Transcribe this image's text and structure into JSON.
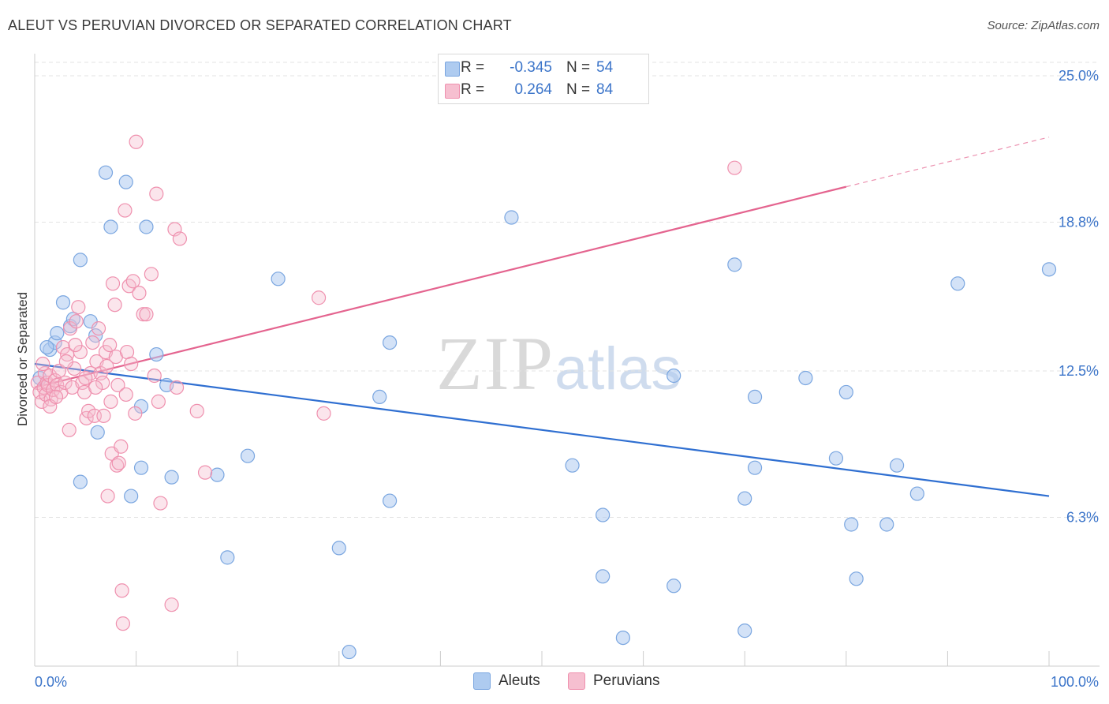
{
  "header": {
    "title": "ALEUT VS PERUVIAN DIVORCED OR SEPARATED CORRELATION CHART",
    "source": "Source: ZipAtlas.com"
  },
  "watermark": {
    "zip": "ZIP",
    "atlas": "atlas"
  },
  "legend": {
    "r_label": "R =",
    "n_label": "N =",
    "aleuts": {
      "r": "-0.345",
      "n": "54"
    },
    "peruvians": {
      "r": "0.264",
      "n": "84"
    }
  },
  "bottom_legend": {
    "aleuts": "Aleuts",
    "peruvians": "Peruvians"
  },
  "colors": {
    "aleut_fill": "#aecbf0",
    "aleut_stroke": "#7aa6e0",
    "aleut_line": "#2f6fd1",
    "peru_fill": "#f6bfd0",
    "peru_stroke": "#ef90ae",
    "peru_line": "#e4648f",
    "tick_label": "#3b74c9",
    "grid": "#e3e3e3"
  },
  "chart_data": {
    "type": "scatter",
    "title": "ALEUT VS PERUVIAN DIVORCED OR SEPARATED CORRELATION CHART",
    "xlabel": "",
    "ylabel": "Divorced or Separated",
    "xlim": [
      0,
      100
    ],
    "ylim": [
      0,
      25
    ],
    "x_tick_labels": [
      "0.0%",
      "100.0%"
    ],
    "y_ticks": [
      6.3,
      12.5,
      18.8,
      25.0
    ],
    "y_tick_labels": [
      "6.3%",
      "12.5%",
      "18.8%",
      "25.0%"
    ],
    "grid": true,
    "series": [
      {
        "name": "Aleuts",
        "r": -0.345,
        "n": 54,
        "trend": {
          "x": [
            0,
            100
          ],
          "y": [
            12.8,
            7.2
          ]
        },
        "points": [
          [
            0.5,
            12.2
          ],
          [
            1.5,
            13.4
          ],
          [
            2.0,
            13.7
          ],
          [
            2.2,
            14.1
          ],
          [
            2.8,
            15.4
          ],
          [
            3.5,
            14.4
          ],
          [
            3.8,
            14.7
          ],
          [
            1.2,
            13.5
          ],
          [
            4.5,
            17.2
          ],
          [
            5.5,
            14.6
          ],
          [
            6.0,
            14.0
          ],
          [
            7.0,
            20.9
          ],
          [
            9.0,
            20.5
          ],
          [
            7.5,
            18.6
          ],
          [
            11.0,
            18.6
          ],
          [
            12.0,
            13.2
          ],
          [
            13.0,
            11.9
          ],
          [
            10.5,
            11.0
          ],
          [
            6.2,
            9.9
          ],
          [
            4.5,
            7.8
          ],
          [
            10.5,
            8.4
          ],
          [
            9.5,
            7.2
          ],
          [
            13.5,
            8.0
          ],
          [
            18.0,
            8.1
          ],
          [
            21.0,
            8.9
          ],
          [
            19.0,
            4.6
          ],
          [
            24.0,
            16.4
          ],
          [
            35.0,
            13.7
          ],
          [
            34.0,
            11.4
          ],
          [
            35.0,
            7.0
          ],
          [
            30.0,
            5.0
          ],
          [
            31.0,
            0.6
          ],
          [
            47.0,
            19.0
          ],
          [
            53.0,
            8.5
          ],
          [
            56.0,
            6.4
          ],
          [
            56.0,
            3.8
          ],
          [
            58.0,
            1.2
          ],
          [
            63.0,
            12.3
          ],
          [
            63.0,
            3.4
          ],
          [
            69.0,
            17.0
          ],
          [
            71.0,
            11.4
          ],
          [
            71.0,
            8.4
          ],
          [
            70.0,
            7.1
          ],
          [
            70.0,
            1.5
          ],
          [
            76.0,
            12.2
          ],
          [
            80.0,
            11.6
          ],
          [
            79.0,
            8.8
          ],
          [
            80.5,
            6.0
          ],
          [
            81.0,
            3.7
          ],
          [
            84.0,
            6.0
          ],
          [
            85.0,
            8.5
          ],
          [
            87.0,
            7.3
          ],
          [
            91.0,
            16.2
          ],
          [
            100.0,
            16.8
          ]
        ]
      },
      {
        "name": "Peruvians",
        "r": 0.264,
        "n": 84,
        "trend": {
          "x": [
            0,
            80
          ],
          "y": [
            11.8,
            20.3
          ],
          "dashed_extension": {
            "x": [
              80,
              100
            ],
            "y": [
              20.3,
              22.4
            ]
          }
        },
        "points": [
          [
            0.3,
            12.0
          ],
          [
            0.5,
            11.6
          ],
          [
            0.7,
            11.2
          ],
          [
            0.9,
            11.8
          ],
          [
            1.0,
            12.4
          ],
          [
            1.1,
            11.5
          ],
          [
            1.2,
            12.0
          ],
          [
            1.3,
            11.9
          ],
          [
            1.5,
            12.3
          ],
          [
            1.6,
            11.3
          ],
          [
            1.8,
            11.7
          ],
          [
            2.0,
            12.1
          ],
          [
            2.2,
            11.9
          ],
          [
            2.4,
            12.5
          ],
          [
            2.6,
            11.6
          ],
          [
            2.8,
            13.5
          ],
          [
            3.0,
            12.0
          ],
          [
            3.2,
            13.2
          ],
          [
            3.4,
            10.0
          ],
          [
            3.5,
            14.3
          ],
          [
            3.7,
            11.8
          ],
          [
            3.9,
            12.6
          ],
          [
            4.1,
            14.6
          ],
          [
            4.3,
            15.2
          ],
          [
            4.5,
            13.3
          ],
          [
            4.7,
            12.0
          ],
          [
            4.9,
            11.6
          ],
          [
            5.1,
            10.5
          ],
          [
            5.3,
            10.8
          ],
          [
            5.5,
            12.4
          ],
          [
            5.7,
            13.7
          ],
          [
            5.9,
            10.6
          ],
          [
            6.1,
            12.9
          ],
          [
            6.3,
            14.3
          ],
          [
            6.5,
            12.4
          ],
          [
            6.7,
            12.0
          ],
          [
            6.8,
            10.6
          ],
          [
            7.0,
            13.3
          ],
          [
            7.2,
            7.2
          ],
          [
            7.4,
            13.6
          ],
          [
            7.5,
            11.2
          ],
          [
            7.6,
            9.0
          ],
          [
            7.7,
            16.2
          ],
          [
            7.9,
            15.3
          ],
          [
            8.0,
            13.1
          ],
          [
            8.1,
            8.5
          ],
          [
            8.3,
            8.6
          ],
          [
            8.5,
            9.3
          ],
          [
            8.6,
            3.2
          ],
          [
            8.7,
            1.8
          ],
          [
            8.9,
            19.3
          ],
          [
            9.1,
            13.3
          ],
          [
            9.3,
            16.1
          ],
          [
            9.5,
            12.8
          ],
          [
            9.7,
            16.3
          ],
          [
            9.9,
            10.7
          ],
          [
            10.0,
            22.2
          ],
          [
            10.3,
            15.8
          ],
          [
            10.7,
            14.9
          ],
          [
            11.0,
            14.9
          ],
          [
            11.5,
            16.6
          ],
          [
            11.8,
            12.3
          ],
          [
            12.0,
            20.0
          ],
          [
            12.2,
            11.2
          ],
          [
            12.4,
            6.9
          ],
          [
            13.5,
            2.6
          ],
          [
            13.8,
            18.5
          ],
          [
            14.0,
            11.8
          ],
          [
            14.3,
            18.1
          ],
          [
            16.0,
            10.8
          ],
          [
            16.8,
            8.2
          ],
          [
            28.0,
            15.6
          ],
          [
            28.5,
            10.7
          ],
          [
            69.0,
            21.1
          ],
          [
            1.5,
            11.0
          ],
          [
            2.1,
            11.4
          ],
          [
            3.1,
            12.9
          ],
          [
            4.0,
            13.6
          ],
          [
            5.0,
            12.2
          ],
          [
            6.0,
            11.8
          ],
          [
            7.1,
            12.7
          ],
          [
            8.2,
            11.9
          ],
          [
            9.0,
            11.5
          ],
          [
            0.8,
            12.8
          ]
        ]
      }
    ]
  }
}
